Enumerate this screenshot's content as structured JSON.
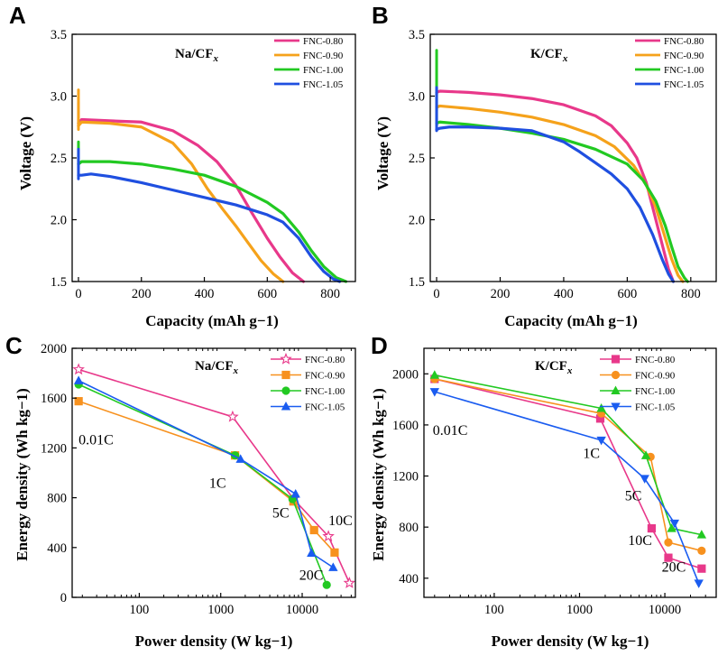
{
  "colors": {
    "pink": "#e8388a",
    "orange": "#f5a21b",
    "orange_dark": "#f7911e",
    "green": "#22c922",
    "blue": "#1f4fe0",
    "blue_bright": "#1a5cf0"
  },
  "chart_data": [
    {
      "panel": "A",
      "type": "line",
      "annotation_main": "Na/CF",
      "annotation_sub": "x",
      "xlabel": "Capacity (mAh g−1)",
      "ylabel": "Voltage  (V)",
      "xlim": [
        -20,
        880
      ],
      "ylim": [
        1.5,
        3.5
      ],
      "xticks": [
        0,
        200,
        400,
        600,
        800
      ],
      "xtick_labels": [
        "0",
        "200",
        "400",
        "600",
        "800"
      ],
      "yticks": [
        1.5,
        2.0,
        2.5,
        3.0,
        3.5
      ],
      "ytick_labels": [
        "1.5",
        "2.0",
        "2.5",
        "3.0",
        "3.5"
      ],
      "legend_position": "top-right",
      "series": [
        {
          "name": "FNC-0.80",
          "color": "#e8388a",
          "spike": [
            0,
            2.75,
            2.95
          ],
          "x": [
            0,
            10,
            100,
            200,
            300,
            380,
            440,
            500,
            550,
            600,
            640,
            680,
            715
          ],
          "y": [
            2.78,
            2.81,
            2.8,
            2.79,
            2.72,
            2.6,
            2.47,
            2.28,
            2.06,
            1.85,
            1.7,
            1.57,
            1.5
          ]
        },
        {
          "name": "FNC-0.90",
          "color": "#f5a21b",
          "spike": [
            0,
            2.73,
            3.05
          ],
          "x": [
            0,
            10,
            100,
            200,
            300,
            360,
            410,
            460,
            500,
            540,
            580,
            620,
            650
          ],
          "y": [
            2.76,
            2.79,
            2.78,
            2.75,
            2.62,
            2.45,
            2.25,
            2.08,
            1.95,
            1.81,
            1.67,
            1.56,
            1.5
          ]
        },
        {
          "name": "FNC-1.00",
          "color": "#22c922",
          "spike": [
            0,
            2.42,
            2.63
          ],
          "x": [
            0,
            10,
            100,
            200,
            300,
            400,
            500,
            600,
            650,
            700,
            740,
            780,
            820,
            850
          ],
          "y": [
            2.45,
            2.47,
            2.47,
            2.45,
            2.41,
            2.36,
            2.27,
            2.14,
            2.05,
            1.9,
            1.75,
            1.62,
            1.53,
            1.5
          ]
        },
        {
          "name": "FNC-1.05",
          "color": "#1f4fe0",
          "spike": [
            0,
            2.33,
            2.57
          ],
          "x": [
            0,
            10,
            40,
            100,
            200,
            300,
            400,
            500,
            600,
            650,
            700,
            740,
            780,
            810,
            830
          ],
          "y": [
            2.36,
            2.36,
            2.37,
            2.35,
            2.3,
            2.24,
            2.18,
            2.12,
            2.04,
            1.98,
            1.85,
            1.7,
            1.58,
            1.52,
            1.5
          ]
        }
      ]
    },
    {
      "panel": "B",
      "type": "line",
      "annotation_main": "K/CF",
      "annotation_sub": "x",
      "xlabel": "Capacity (mAh g−1)",
      "ylabel": "",
      "xlim": [
        -20,
        880
      ],
      "ylim": [
        1.5,
        3.5
      ],
      "xticks": [
        0,
        200,
        400,
        600,
        800
      ],
      "xtick_labels": [
        "0",
        "200",
        "400",
        "600",
        "800"
      ],
      "yticks": [
        1.5,
        2.0,
        2.5,
        3.0,
        3.5
      ],
      "ytick_labels": [
        "1.5",
        "2.0",
        "2.5",
        "3.0",
        "3.5"
      ],
      "legend_position": "top-right",
      "series": [
        {
          "name": "FNC-0.80",
          "color": "#e8388a",
          "spike": [
            0,
            3.0,
            3.07
          ],
          "x": [
            0,
            10,
            100,
            200,
            300,
            400,
            500,
            550,
            600,
            630,
            660,
            690,
            710,
            730,
            745
          ],
          "y": [
            3.03,
            3.04,
            3.03,
            3.01,
            2.98,
            2.93,
            2.84,
            2.76,
            2.62,
            2.5,
            2.3,
            2.0,
            1.8,
            1.6,
            1.5
          ]
        },
        {
          "name": "FNC-0.90",
          "color": "#f5a21b",
          "spike": [
            0,
            2.88,
            2.93
          ],
          "x": [
            0,
            10,
            100,
            200,
            300,
            400,
            500,
            560,
            620,
            660,
            690,
            720,
            740,
            760,
            775
          ],
          "y": [
            2.91,
            2.92,
            2.9,
            2.87,
            2.83,
            2.77,
            2.68,
            2.59,
            2.44,
            2.28,
            2.1,
            1.85,
            1.68,
            1.55,
            1.5
          ]
        },
        {
          "name": "FNC-1.00",
          "color": "#22c922",
          "spike": [
            0,
            2.76,
            3.37
          ],
          "x": [
            0,
            10,
            100,
            200,
            300,
            400,
            500,
            600,
            650,
            690,
            720,
            740,
            760,
            780,
            790
          ],
          "y": [
            2.78,
            2.79,
            2.77,
            2.74,
            2.7,
            2.65,
            2.57,
            2.45,
            2.32,
            2.15,
            1.95,
            1.78,
            1.62,
            1.53,
            1.5
          ]
        },
        {
          "name": "FNC-1.05",
          "color": "#1f4fe0",
          "spike": [
            0,
            2.72,
            3.07
          ],
          "x": [
            0,
            10,
            40,
            100,
            200,
            300,
            400,
            450,
            500,
            550,
            600,
            640,
            680,
            710,
            730,
            745
          ],
          "y": [
            2.73,
            2.74,
            2.75,
            2.75,
            2.74,
            2.72,
            2.63,
            2.55,
            2.46,
            2.37,
            2.25,
            2.1,
            1.88,
            1.68,
            1.56,
            1.5
          ]
        }
      ]
    },
    {
      "panel": "C",
      "type": "line",
      "xscale": "log",
      "annotation_main": "Na/CF",
      "annotation_sub": "x",
      "xlabel": "Power density  (W kg−1)",
      "ylabel": "Energy density  (Wh kg−1)",
      "xlim": [
        15,
        45000
      ],
      "ylim": [
        0,
        2000
      ],
      "xticks": [
        100,
        1000,
        10000
      ],
      "xtick_labels": [
        "100",
        "1000",
        "10000"
      ],
      "yticks": [
        0,
        400,
        800,
        1200,
        1600,
        2000
      ],
      "ytick_labels": [
        "0",
        "400",
        "800",
        "1200",
        "1600",
        "2000"
      ],
      "legend_position": "top-right",
      "rate_labels": [
        {
          "text": "0.01C",
          "x": 18,
          "y": 1230
        },
        {
          "text": "1C",
          "x": 720,
          "y": 880
        },
        {
          "text": "5C",
          "x": 4300,
          "y": 640
        },
        {
          "text": "10C",
          "x": 21000,
          "y": 580
        },
        {
          "text": "20C",
          "x": 9200,
          "y": 140
        }
      ],
      "series": [
        {
          "name": "FNC-0.80",
          "color": "#e8388a",
          "marker": "star",
          "x": [
            18,
            1400,
            7800,
            21000,
            38000
          ],
          "y": [
            1830,
            1450,
            790,
            490,
            115
          ]
        },
        {
          "name": "FNC-0.90",
          "color": "#f7911e",
          "marker": "square",
          "x": [
            18,
            1500,
            7800,
            14000,
            25000
          ],
          "y": [
            1575,
            1140,
            770,
            540,
            360
          ]
        },
        {
          "name": "FNC-1.00",
          "color": "#22c922",
          "marker": "circle",
          "x": [
            18,
            1500,
            7600,
            20000
          ],
          "y": [
            1710,
            1140,
            790,
            100
          ]
        },
        {
          "name": "FNC-1.05",
          "color": "#1a5cf0",
          "marker": "triangle-up",
          "x": [
            18,
            1750,
            8300,
            13000,
            24000
          ],
          "y": [
            1740,
            1110,
            830,
            355,
            240
          ]
        }
      ]
    },
    {
      "panel": "D",
      "type": "line",
      "xscale": "log",
      "annotation_main": "K/CF",
      "annotation_sub": "x",
      "xlabel": "Power density  (W kg−1)",
      "ylabel": "",
      "xlim": [
        15,
        40000
      ],
      "ylim": [
        250,
        2200
      ],
      "xticks": [
        100,
        1000,
        10000
      ],
      "xtick_labels": [
        "100",
        "1000",
        "10000"
      ],
      "yticks": [
        400,
        800,
        1200,
        1600,
        2000
      ],
      "ytick_labels": [
        "400",
        "800",
        "1200",
        "1600",
        "2000"
      ],
      "legend_position": "top-right",
      "rate_labels": [
        {
          "text": "0.01C",
          "x": 19,
          "y": 1520
        },
        {
          "text": "1C",
          "x": 1100,
          "y": 1340
        },
        {
          "text": "5C",
          "x": 3400,
          "y": 1010
        },
        {
          "text": "10C",
          "x": 3700,
          "y": 660
        },
        {
          "text": "20C",
          "x": 9200,
          "y": 450
        }
      ],
      "series": [
        {
          "name": "FNC-0.80",
          "color": "#e8388a",
          "marker": "square",
          "x": [
            20,
            1750,
            7000,
            11000,
            27000
          ],
          "y": [
            1960,
            1650,
            790,
            560,
            475
          ]
        },
        {
          "name": "FNC-0.90",
          "color": "#f7911e",
          "marker": "circle",
          "x": [
            20,
            1800,
            6800,
            11000,
            27000
          ],
          "y": [
            1960,
            1690,
            1350,
            680,
            615
          ]
        },
        {
          "name": "FNC-1.00",
          "color": "#22c922",
          "marker": "triangle-up",
          "x": [
            20,
            1800,
            6000,
            12000,
            27000
          ],
          "y": [
            1990,
            1730,
            1360,
            790,
            740
          ]
        },
        {
          "name": "FNC-1.05",
          "color": "#1a5cf0",
          "marker": "triangle-down",
          "x": [
            20,
            1800,
            5800,
            13000,
            25000
          ],
          "y": [
            1860,
            1480,
            1180,
            830,
            360
          ]
        }
      ]
    }
  ]
}
